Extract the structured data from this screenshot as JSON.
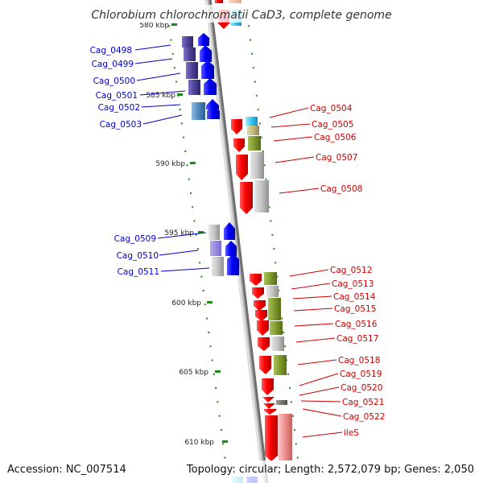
{
  "title": "Chlorobium chlorochromatii CaD3, complete genome",
  "footer": {
    "accession": "Accession: NC_007514",
    "summary": "Topology: circular; Length: 2,572,079 bp; Genes: 2,050"
  },
  "colors": {
    "left_label": "#0000cc",
    "right_label": "#cc0000",
    "backbone": "#999999",
    "tick": "#1a8a1a",
    "gene_left": "#0000ff",
    "gene_right": "#ff0000"
  },
  "scale": {
    "ticks": [
      {
        "label": "580 kbp"
      },
      {
        "label": "585 kbp"
      },
      {
        "label": "590 kbp"
      },
      {
        "label": "595 kbp"
      },
      {
        "label": "600 kbp"
      },
      {
        "label": "605 kbp"
      },
      {
        "label": "610 kbp"
      }
    ]
  },
  "genes_left": [
    {
      "name": "Cag_0498"
    },
    {
      "name": "Cag_0499"
    },
    {
      "name": "Cag_0500"
    },
    {
      "name": "Cag_0501"
    },
    {
      "name": "Cag_0502"
    },
    {
      "name": "Cag_0503"
    },
    {
      "name": "Cag_0509"
    },
    {
      "name": "Cag_0510"
    },
    {
      "name": "Cag_0511"
    }
  ],
  "genes_right": [
    {
      "name": "Cag_0504"
    },
    {
      "name": "Cag_0505"
    },
    {
      "name": "Cag_0506"
    },
    {
      "name": "Cag_0507"
    },
    {
      "name": "Cag_0508"
    },
    {
      "name": "Cag_0512"
    },
    {
      "name": "Cag_0513"
    },
    {
      "name": "Cag_0514"
    },
    {
      "name": "Cag_0515"
    },
    {
      "name": "Cag_0516"
    },
    {
      "name": "Cag_0517"
    },
    {
      "name": "Cag_0518"
    },
    {
      "name": "Cag_0519"
    },
    {
      "name": "Cag_0520"
    },
    {
      "name": "Cag_0521"
    },
    {
      "name": "Cag_0522"
    },
    {
      "name": "ileS"
    }
  ]
}
